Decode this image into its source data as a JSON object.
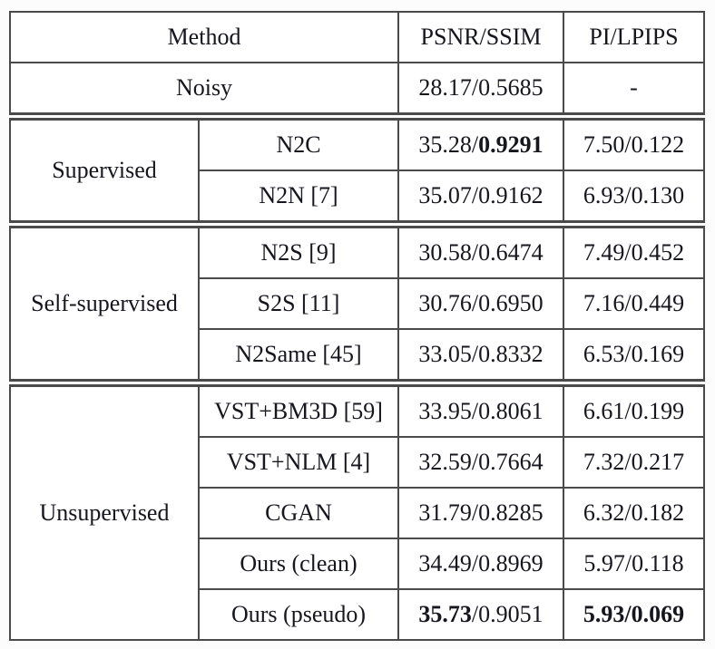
{
  "colors": {
    "border": "#4a4a4a",
    "text": "#16161f",
    "background": "#ffffff"
  },
  "table": {
    "header": {
      "method": "Method",
      "psnr_ssim": "PSNR/SSIM",
      "pi_lpips": "PI/LPIPS"
    },
    "noisy": {
      "label": "Noisy",
      "psnr": {
        "pre": "28.17/0.5685",
        "bold": "",
        "post": ""
      },
      "pi": {
        "pre": "-",
        "bold": "",
        "post": ""
      }
    },
    "groups": [
      {
        "category": "Supervised",
        "rows": [
          {
            "method": "N2C",
            "psnr": {
              "pre": "35.28/",
              "bold": "0.9291",
              "post": ""
            },
            "pi": {
              "pre": "7.50/0.122",
              "bold": "",
              "post": ""
            }
          },
          {
            "method": "N2N [7]",
            "psnr": {
              "pre": "35.07/0.9162",
              "bold": "",
              "post": ""
            },
            "pi": {
              "pre": "6.93/0.130",
              "bold": "",
              "post": ""
            }
          }
        ]
      },
      {
        "category": "Self-supervised",
        "rows": [
          {
            "method": "N2S [9]",
            "psnr": {
              "pre": "30.58/0.6474",
              "bold": "",
              "post": ""
            },
            "pi": {
              "pre": "7.49/0.452",
              "bold": "",
              "post": ""
            }
          },
          {
            "method": "S2S [11]",
            "psnr": {
              "pre": "30.76/0.6950",
              "bold": "",
              "post": ""
            },
            "pi": {
              "pre": "7.16/0.449",
              "bold": "",
              "post": ""
            }
          },
          {
            "method": "N2Same [45]",
            "psnr": {
              "pre": "33.05/0.8332",
              "bold": "",
              "post": ""
            },
            "pi": {
              "pre": "6.53/0.169",
              "bold": "",
              "post": ""
            }
          }
        ]
      },
      {
        "category": "Unsupervised",
        "rows": [
          {
            "method": "VST+BM3D [59]",
            "psnr": {
              "pre": "33.95/0.8061",
              "bold": "",
              "post": ""
            },
            "pi": {
              "pre": "6.61/0.199",
              "bold": "",
              "post": ""
            }
          },
          {
            "method": "VST+NLM [4]",
            "psnr": {
              "pre": "32.59/0.7664",
              "bold": "",
              "post": ""
            },
            "pi": {
              "pre": "7.32/0.217",
              "bold": "",
              "post": ""
            }
          },
          {
            "method": "CGAN",
            "psnr": {
              "pre": "31.79/0.8285",
              "bold": "",
              "post": ""
            },
            "pi": {
              "pre": "6.32/0.182",
              "bold": "",
              "post": ""
            }
          },
          {
            "method": "Ours (clean)",
            "psnr": {
              "pre": "34.49/0.8969",
              "bold": "",
              "post": ""
            },
            "pi": {
              "pre": "5.97/0.118",
              "bold": "",
              "post": ""
            }
          },
          {
            "method": "Ours (pseudo)",
            "psnr": {
              "pre": "",
              "bold": "35.73",
              "post": "/0.9051"
            },
            "pi": {
              "pre": "",
              "bold": "5.93/0.069",
              "post": ""
            }
          }
        ]
      }
    ]
  }
}
